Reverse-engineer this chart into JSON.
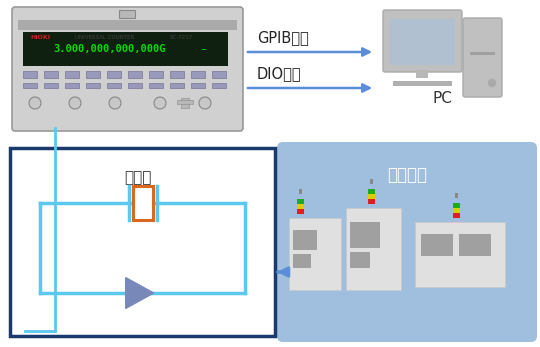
{
  "bg_color": "#ffffff",
  "fig_w": 5.4,
  "fig_h": 3.47,
  "dpi": 100,
  "gpib_label": "GPIB制御",
  "dio_label": "DIO出力",
  "pc_label": "PC",
  "seisan_label": "生産設備",
  "hantei_label": "判定中",
  "arrow_color": "#5b8dd9",
  "light_blue": "#5bc8f0",
  "dark_blue": "#1a3a6e",
  "box_bg": "#a0bede",
  "orange_rect": "#d96820",
  "slate_triangle": "#7888b8",
  "inst_body": "#c8c8c8",
  "inst_screen": "#102010",
  "inst_text": "#00dd00",
  "pc_body": "#c0c0c0",
  "pc_screen": "#b0c0d0",
  "machine_body": "#e0e0e0",
  "machine_screen": "#a0a0a0"
}
